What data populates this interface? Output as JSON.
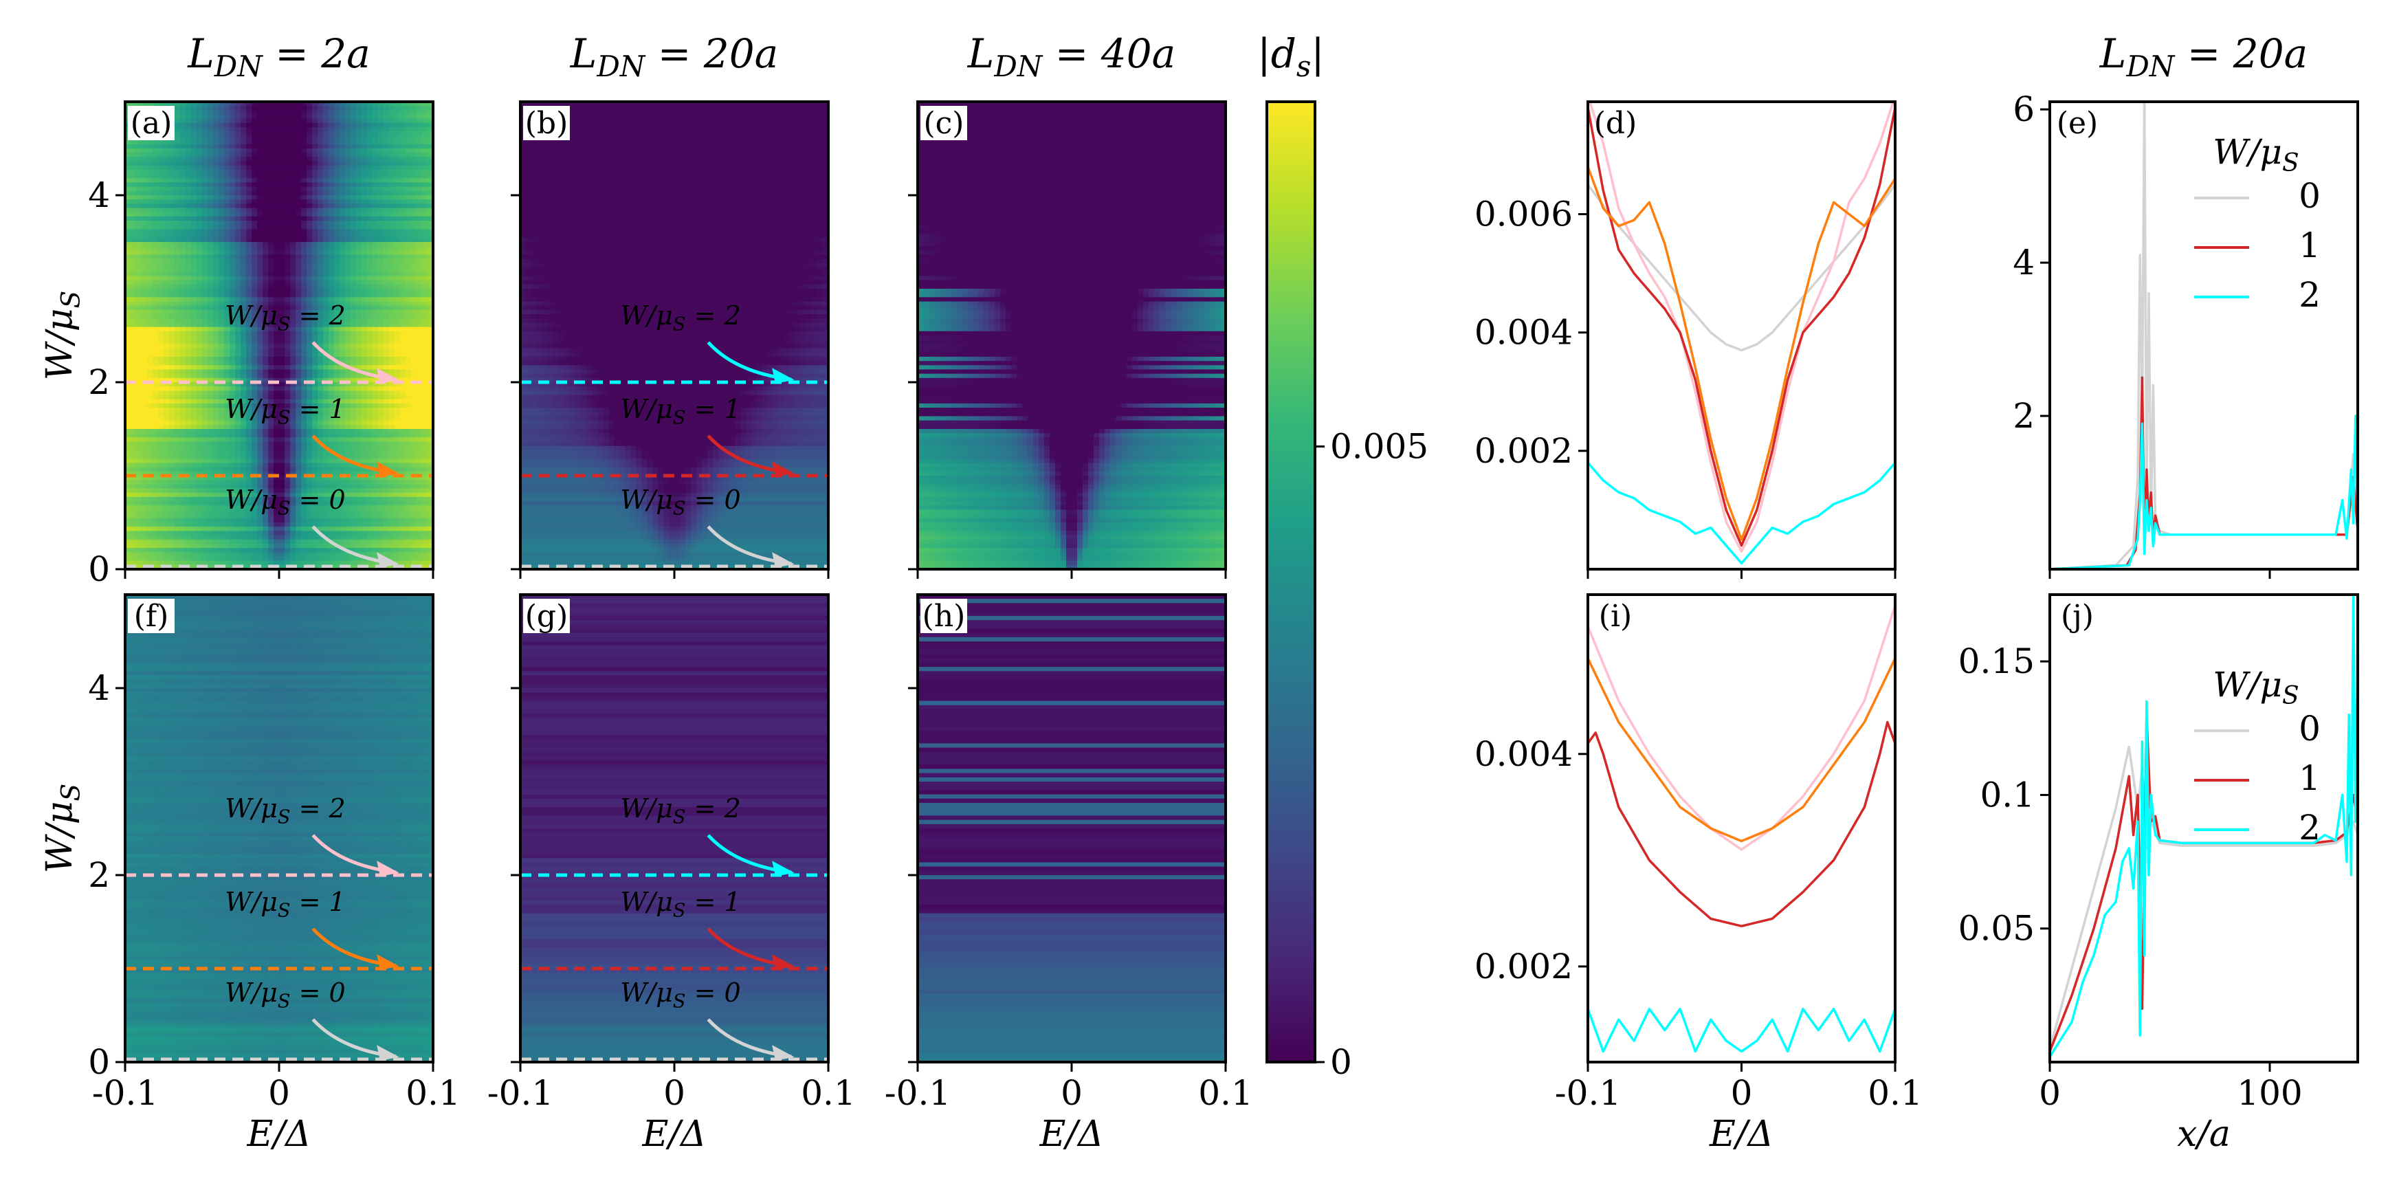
{
  "colors": {
    "viridis": [
      "#440154",
      "#482878",
      "#3e4a89",
      "#31688e",
      "#26828e",
      "#1f9e89",
      "#35b779",
      "#6ece58",
      "#b5de2b",
      "#fde725"
    ],
    "w0": "#d3d3d3",
    "w1": "#d62728",
    "w2": "#00ffff",
    "pink": "#ffc0cb",
    "orange": "#ff7f0e"
  },
  "chart_data": [
    {
      "id": "a",
      "type": "heatmap",
      "label": "(a)",
      "title": "L_DN = 2a",
      "x_ticks": [
        "-0.1",
        "0",
        "0.1"
      ],
      "xlabel": "E/Δ",
      "y_ticks": [
        "0",
        "2",
        "4"
      ],
      "ylabel": "W/μ_S",
      "xlim": [
        -0.1,
        0.1
      ],
      "ylim": [
        0,
        5
      ],
      "profile": "a",
      "markers": [
        {
          "W": 0,
          "text": "W/μ_S = 0",
          "color": "#d3d3d3"
        },
        {
          "W": 1,
          "text": "W/μ_S = 1",
          "color": "#ff7f0e"
        },
        {
          "W": 2,
          "text": "W/μ_S = 2",
          "color": "#ffc0cb"
        }
      ]
    },
    {
      "id": "b",
      "type": "heatmap",
      "label": "(b)",
      "title": "L_DN = 20a",
      "x_ticks": [
        "-0.1",
        "0",
        "0.1"
      ],
      "xlabel": "E/Δ",
      "xlim": [
        -0.1,
        0.1
      ],
      "ylim": [
        0,
        5
      ],
      "profile": "b",
      "markers": [
        {
          "W": 0,
          "text": "W/μ_S = 0",
          "color": "#d3d3d3"
        },
        {
          "W": 1,
          "text": "W/μ_S = 1",
          "color": "#d62728"
        },
        {
          "W": 2,
          "text": "W/μ_S = 2",
          "color": "#00ffff"
        }
      ]
    },
    {
      "id": "c",
      "type": "heatmap",
      "label": "(c)",
      "title": "L_DN = 40a",
      "x_ticks": [
        "-0.1",
        "0",
        "0.1"
      ],
      "xlabel": "E/Δ",
      "xlim": [
        -0.1,
        0.1
      ],
      "ylim": [
        0,
        5
      ],
      "profile": "c",
      "markers": []
    },
    {
      "id": "f",
      "type": "heatmap",
      "label": "(f)",
      "x_ticks": [
        "-0.1",
        "0",
        "0.1"
      ],
      "xlabel": "E/Δ",
      "y_ticks": [
        "0",
        "2",
        "4"
      ],
      "ylabel": "W/μ_S",
      "xlim": [
        -0.1,
        0.1
      ],
      "ylim": [
        0,
        5
      ],
      "profile": "f",
      "markers": [
        {
          "W": 0,
          "text": "W/μ_S = 0",
          "color": "#d3d3d3"
        },
        {
          "W": 1,
          "text": "W/μ_S = 1",
          "color": "#ff7f0e"
        },
        {
          "W": 2,
          "text": "W/μ_S = 2",
          "color": "#ffc0cb"
        }
      ]
    },
    {
      "id": "g",
      "type": "heatmap",
      "label": "(g)",
      "x_ticks": [
        "-0.1",
        "0",
        "0.1"
      ],
      "xlabel": "E/Δ",
      "xlim": [
        -0.1,
        0.1
      ],
      "ylim": [
        0,
        5
      ],
      "profile": "g",
      "markers": [
        {
          "W": 0,
          "text": "W/μ_S = 0",
          "color": "#d3d3d3"
        },
        {
          "W": 1,
          "text": "W/μ_S = 1",
          "color": "#d62728"
        },
        {
          "W": 2,
          "text": "W/μ_S = 2",
          "color": "#00ffff"
        }
      ]
    },
    {
      "id": "h",
      "type": "heatmap",
      "label": "(h)",
      "x_ticks": [
        "-0.1",
        "0",
        "0.1"
      ],
      "xlabel": "E/Δ",
      "xlim": [
        -0.1,
        0.1
      ],
      "ylim": [
        0,
        5
      ],
      "profile": "h",
      "markers": []
    },
    {
      "id": "cb",
      "type": "colorbar",
      "title": "|d_s|",
      "ticks": [
        {
          "v": 0,
          "label": "0"
        },
        {
          "v": 0.005,
          "label": "0.005"
        }
      ],
      "range": [
        0,
        0.0078
      ]
    },
    {
      "id": "d",
      "type": "line",
      "label": "(d)",
      "x_ticks": [
        "-0.1",
        "0",
        "0.1"
      ],
      "xlim": [
        -0.1,
        0.1
      ],
      "ylim": [
        0,
        0.0079
      ],
      "y_ticks": [
        {
          "v": 0.002,
          "label": "0.002"
        },
        {
          "v": 0.004,
          "label": "0.004"
        },
        {
          "v": 0.006,
          "label": "0.006"
        }
      ],
      "series": [
        {
          "name": "light",
          "color": "#d3d3d3",
          "x": [
            -0.1,
            -0.08,
            -0.06,
            -0.04,
            -0.02,
            -0.01,
            0,
            0.01,
            0.02,
            0.04,
            0.06,
            0.08,
            0.1
          ],
          "y": [
            0.0065,
            0.0058,
            0.0052,
            0.0046,
            0.004,
            0.0038,
            0.0037,
            0.0038,
            0.004,
            0.0046,
            0.0052,
            0.0058,
            0.0065
          ]
        },
        {
          "name": "pink",
          "color": "#ffc0cb",
          "x": [
            -0.1,
            -0.09,
            -0.08,
            -0.07,
            -0.06,
            -0.05,
            -0.04,
            -0.03,
            -0.02,
            -0.01,
            0,
            0.01,
            0.02,
            0.03,
            0.04,
            0.05,
            0.06,
            0.07,
            0.08,
            0.09,
            0.1
          ],
          "y": [
            0.008,
            0.0072,
            0.0061,
            0.0055,
            0.005,
            0.0046,
            0.004,
            0.003,
            0.0018,
            0.0008,
            0.0003,
            0.0008,
            0.0018,
            0.003,
            0.004,
            0.0046,
            0.0052,
            0.0062,
            0.0066,
            0.0072,
            0.008
          ]
        },
        {
          "name": "red",
          "color": "#d62728",
          "x": [
            -0.1,
            -0.09,
            -0.08,
            -0.07,
            -0.06,
            -0.05,
            -0.04,
            -0.03,
            -0.02,
            -0.01,
            0,
            0.01,
            0.02,
            0.03,
            0.04,
            0.05,
            0.06,
            0.07,
            0.08,
            0.09,
            0.1
          ],
          "y": [
            0.0078,
            0.0064,
            0.0054,
            0.005,
            0.0047,
            0.0044,
            0.004,
            0.0032,
            0.002,
            0.001,
            0.0004,
            0.001,
            0.002,
            0.0032,
            0.004,
            0.0043,
            0.0046,
            0.005,
            0.0056,
            0.0065,
            0.0078
          ]
        },
        {
          "name": "orange",
          "color": "#ff7f0e",
          "x": [
            -0.1,
            -0.09,
            -0.08,
            -0.07,
            -0.06,
            -0.05,
            -0.04,
            -0.03,
            -0.02,
            -0.01,
            0,
            0.01,
            0.02,
            0.03,
            0.04,
            0.05,
            0.06,
            0.07,
            0.08,
            0.09,
            0.1
          ],
          "y": [
            0.0068,
            0.0061,
            0.0058,
            0.0059,
            0.0062,
            0.0055,
            0.0045,
            0.0034,
            0.0022,
            0.0012,
            0.0005,
            0.0012,
            0.0022,
            0.0034,
            0.0045,
            0.0055,
            0.0062,
            0.006,
            0.0058,
            0.0062,
            0.0066
          ]
        },
        {
          "name": "cyan",
          "color": "#00ffff",
          "x": [
            -0.1,
            -0.09,
            -0.08,
            -0.07,
            -0.06,
            -0.05,
            -0.04,
            -0.03,
            -0.02,
            -0.01,
            0,
            0.01,
            0.02,
            0.03,
            0.04,
            0.05,
            0.06,
            0.07,
            0.08,
            0.09,
            0.1
          ],
          "y": [
            0.0018,
            0.0015,
            0.0013,
            0.0012,
            0.001,
            0.0009,
            0.0008,
            0.0006,
            0.0007,
            0.0004,
            0.0001,
            0.0004,
            0.0007,
            0.0006,
            0.0008,
            0.0009,
            0.0011,
            0.0012,
            0.0013,
            0.0015,
            0.0018
          ]
        }
      ]
    },
    {
      "id": "i",
      "type": "line",
      "label": "(i)",
      "x_ticks": [
        "-0.1",
        "0",
        "0.1"
      ],
      "xlabel": "E/Δ",
      "xlim": [
        -0.1,
        0.1
      ],
      "ylim": [
        0.0011,
        0.0055
      ],
      "y_ticks": [
        {
          "v": 0.002,
          "label": "0.002"
        },
        {
          "v": 0.004,
          "label": "0.004"
        }
      ],
      "series": [
        {
          "name": "pink",
          "color": "#ffc0cb",
          "x": [
            -0.1,
            -0.08,
            -0.06,
            -0.04,
            -0.02,
            0,
            0.02,
            0.04,
            0.06,
            0.08,
            0.1
          ],
          "y": [
            0.0052,
            0.0045,
            0.004,
            0.0036,
            0.0033,
            0.0031,
            0.0033,
            0.0036,
            0.004,
            0.0045,
            0.0054
          ]
        },
        {
          "name": "orange",
          "color": "#ff7f0e",
          "x": [
            -0.1,
            -0.08,
            -0.06,
            -0.04,
            -0.02,
            0,
            0.02,
            0.04,
            0.06,
            0.08,
            0.1
          ],
          "y": [
            0.0049,
            0.0043,
            0.0039,
            0.0035,
            0.0033,
            0.00318,
            0.0033,
            0.0035,
            0.0039,
            0.0043,
            0.0049
          ]
        },
        {
          "name": "red",
          "color": "#d62728",
          "x": [
            -0.1,
            -0.095,
            -0.09,
            -0.08,
            -0.06,
            -0.04,
            -0.02,
            0,
            0.02,
            0.04,
            0.06,
            0.08,
            0.09,
            0.095,
            0.1
          ],
          "y": [
            0.0041,
            0.0042,
            0.004,
            0.0035,
            0.003,
            0.0027,
            0.00245,
            0.00238,
            0.00245,
            0.0027,
            0.003,
            0.0035,
            0.004,
            0.0043,
            0.0041
          ]
        },
        {
          "name": "cyan",
          "color": "#00ffff",
          "x": [
            -0.1,
            -0.09,
            -0.08,
            -0.07,
            -0.06,
            -0.05,
            -0.04,
            -0.03,
            -0.02,
            -0.01,
            0,
            0.01,
            0.02,
            0.03,
            0.04,
            0.05,
            0.06,
            0.07,
            0.08,
            0.09,
            0.1
          ],
          "y": [
            0.0016,
            0.0012,
            0.0015,
            0.0013,
            0.0016,
            0.0014,
            0.0016,
            0.0012,
            0.0015,
            0.0013,
            0.0012,
            0.0013,
            0.0015,
            0.0012,
            0.0016,
            0.0014,
            0.0016,
            0.0013,
            0.0015,
            0.0012,
            0.0016
          ]
        }
      ]
    },
    {
      "id": "e",
      "type": "line",
      "label": "(e)",
      "title": "L_DN = 20a",
      "xlim": [
        0,
        140
      ],
      "ylim": [
        0,
        6.1
      ],
      "y_ticks": [
        {
          "v": 2,
          "label": "2"
        },
        {
          "v": 4,
          "label": "4"
        },
        {
          "v": 6,
          "label": "6"
        }
      ],
      "legend": {
        "title": "W/μ_S",
        "entries": [
          {
            "label": "0",
            "color": "#d3d3d3"
          },
          {
            "label": "1",
            "color": "#d62728"
          },
          {
            "label": "2",
            "color": "#00ffff"
          }
        ],
        "position": "upper-right"
      },
      "series": [
        {
          "name": "0",
          "color": "#d3d3d3",
          "x": [
            0,
            30,
            38,
            40,
            41,
            42,
            43,
            44,
            45,
            46,
            47,
            48,
            50,
            55,
            60,
            80,
            100,
            120,
            135,
            138,
            140
          ],
          "y": [
            0,
            0.05,
            0.3,
            1.2,
            4.1,
            2.0,
            6.2,
            1.0,
            3.6,
            0.7,
            2.4,
            0.6,
            0.5,
            0.45,
            0.45,
            0.45,
            0.45,
            0.45,
            0.45,
            1.5,
            0.5
          ]
        },
        {
          "name": "1",
          "color": "#d62728",
          "x": [
            0,
            35,
            39,
            41,
            42,
            43,
            44,
            45,
            46,
            47,
            48,
            50,
            55,
            60,
            80,
            100,
            120,
            135,
            138,
            140
          ],
          "y": [
            0,
            0.05,
            0.25,
            1.0,
            2.5,
            0.3,
            1.3,
            0.6,
            1.0,
            0.4,
            0.7,
            0.45,
            0.45,
            0.45,
            0.45,
            0.45,
            0.45,
            0.45,
            1.2,
            0.5
          ]
        },
        {
          "name": "2",
          "color": "#00ffff",
          "x": [
            0,
            36,
            40,
            41,
            42,
            43,
            44,
            45,
            46,
            47,
            48,
            50,
            55,
            60,
            80,
            100,
            120,
            130,
            133,
            135,
            137,
            138,
            139,
            140
          ],
          "y": [
            0,
            0.05,
            0.4,
            0.9,
            1.9,
            0.2,
            0.9,
            0.5,
            0.8,
            0.3,
            0.6,
            0.45,
            0.45,
            0.45,
            0.45,
            0.45,
            0.45,
            0.45,
            0.9,
            0.4,
            1.3,
            0.6,
            2.0,
            0.7
          ]
        }
      ]
    },
    {
      "id": "j",
      "type": "line",
      "label": "(j)",
      "xlim": [
        0,
        140
      ],
      "ylim": [
        0,
        0.175
      ],
      "xlabel": "x/a",
      "x_ticks": [
        {
          "v": 0,
          "label": "0"
        },
        {
          "v": 100,
          "label": "100"
        }
      ],
      "y_ticks": [
        {
          "v": 0.05,
          "label": "0.05"
        },
        {
          "v": 0.1,
          "label": "0.1"
        },
        {
          "v": 0.15,
          "label": "0.15"
        }
      ],
      "legend": {
        "title": "W/μ_S",
        "entries": [
          {
            "label": "0",
            "color": "#d3d3d3"
          },
          {
            "label": "1",
            "color": "#d62728"
          },
          {
            "label": "2",
            "color": "#00ffff"
          }
        ],
        "position": "upper-right"
      },
      "series": [
        {
          "name": "0",
          "color": "#d3d3d3",
          "x": [
            0,
            10,
            20,
            30,
            36,
            40,
            42,
            44,
            46,
            50,
            60,
            80,
            100,
            120,
            130,
            135,
            138,
            140
          ],
          "y": [
            0.005,
            0.035,
            0.065,
            0.095,
            0.118,
            0.095,
            0.11,
            0.08,
            0.09,
            0.082,
            0.081,
            0.081,
            0.081,
            0.081,
            0.082,
            0.085,
            0.09,
            0.085
          ]
        },
        {
          "name": "1",
          "color": "#d62728",
          "x": [
            0,
            10,
            20,
            30,
            36,
            38,
            40,
            42,
            44,
            46,
            48,
            50,
            60,
            80,
            100,
            120,
            130,
            135,
            138,
            140
          ],
          "y": [
            0.004,
            0.025,
            0.05,
            0.08,
            0.107,
            0.085,
            0.1,
            0.02,
            0.13,
            0.09,
            0.092,
            0.083,
            0.082,
            0.082,
            0.082,
            0.082,
            0.083,
            0.086,
            0.1,
            0.09
          ]
        },
        {
          "name": "2",
          "color": "#00ffff",
          "x": [
            0,
            10,
            15,
            20,
            25,
            30,
            33,
            36,
            38,
            40,
            41,
            42,
            43,
            44,
            45,
            46,
            48,
            50,
            60,
            80,
            100,
            120,
            125,
            130,
            133,
            135,
            136,
            137,
            138,
            139,
            140
          ],
          "y": [
            0.002,
            0.015,
            0.03,
            0.04,
            0.055,
            0.06,
            0.075,
            0.08,
            0.065,
            0.09,
            0.01,
            0.12,
            0.04,
            0.135,
            0.07,
            0.1,
            0.085,
            0.083,
            0.082,
            0.082,
            0.082,
            0.082,
            0.085,
            0.083,
            0.1,
            0.075,
            0.13,
            0.07,
            0.175,
            0.09,
            0.16
          ]
        }
      ]
    }
  ]
}
